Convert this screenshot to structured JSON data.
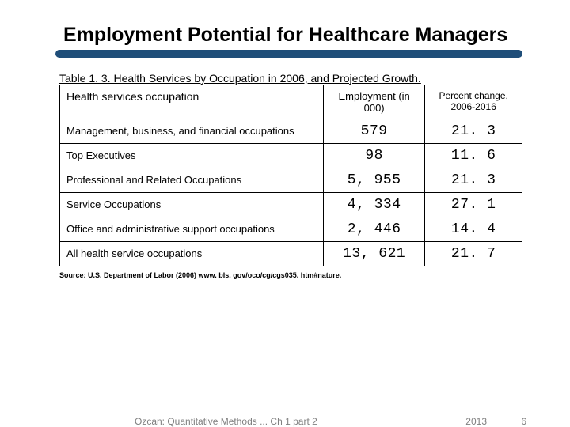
{
  "title": "Employment Potential for Healthcare Managers",
  "caption": "Table 1. 3. Health Services by Occupation in 2006, and Projected Growth.",
  "columns": {
    "occupation": "Health services occupation",
    "employment": "Employment (in 000)",
    "percent": "Percent change, 2006-2016"
  },
  "rows": [
    {
      "occ": "Management, business, and financial occupations",
      "emp": "579",
      "pct": "21. 3"
    },
    {
      "occ": "Top Executives",
      "emp": "98",
      "pct": "11. 6"
    },
    {
      "occ": "Professional and Related Occupations",
      "emp": "5, 955",
      "pct": "21. 3"
    },
    {
      "occ": "Service Occupations",
      "emp": "4, 334",
      "pct": "27. 1"
    },
    {
      "occ": "Office and administrative support occupations",
      "emp": "2, 446",
      "pct": "14. 4"
    },
    {
      "occ": "All health service occupations",
      "emp": "13, 621",
      "pct": "21. 7"
    }
  ],
  "source": "Source: U.S. Department of Labor (2006) www. bls. gov/oco/cg/cgs035. htm#nature.",
  "footer": {
    "left": "Ozcan: Quantitative Methods ... Ch 1 part 2",
    "year": "2013",
    "num": "6"
  },
  "colors": {
    "accent": "#1f4e79",
    "text": "#000000",
    "footer": "#808080"
  }
}
